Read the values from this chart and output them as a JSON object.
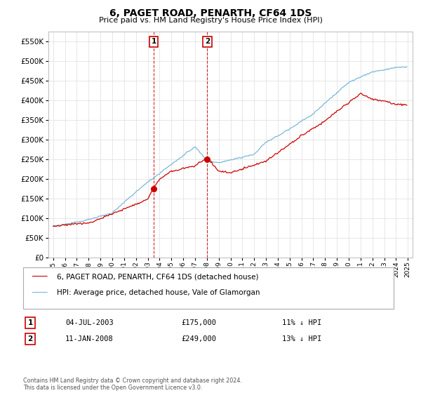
{
  "title": "6, PAGET ROAD, PENARTH, CF64 1DS",
  "subtitle": "Price paid vs. HM Land Registry's House Price Index (HPI)",
  "ytick_values": [
    0,
    50000,
    100000,
    150000,
    200000,
    250000,
    300000,
    350000,
    400000,
    450000,
    500000,
    550000
  ],
  "ylim": [
    0,
    575000
  ],
  "hpi_color": "#7ab8d9",
  "price_color": "#cc0000",
  "legend_label_red": "6, PAGET ROAD, PENARTH, CF64 1DS (detached house)",
  "legend_label_blue": "HPI: Average price, detached house, Vale of Glamorgan",
  "transaction1_date": "04-JUL-2003",
  "transaction1_price": "£175,000",
  "transaction1_hpi": "11% ↓ HPI",
  "transaction1_year": 2003.5,
  "transaction1_price_val": 175000,
  "transaction2_date": "11-JAN-2008",
  "transaction2_price": "£249,000",
  "transaction2_hpi": "13% ↓ HPI",
  "transaction2_year": 2008.04,
  "transaction2_price_val": 249000,
  "footer": "Contains HM Land Registry data © Crown copyright and database right 2024.\nThis data is licensed under the Open Government Licence v3.0.",
  "background_color": "#ffffff",
  "grid_color": "#dddddd",
  "annotation_box_color": "#cc0000"
}
